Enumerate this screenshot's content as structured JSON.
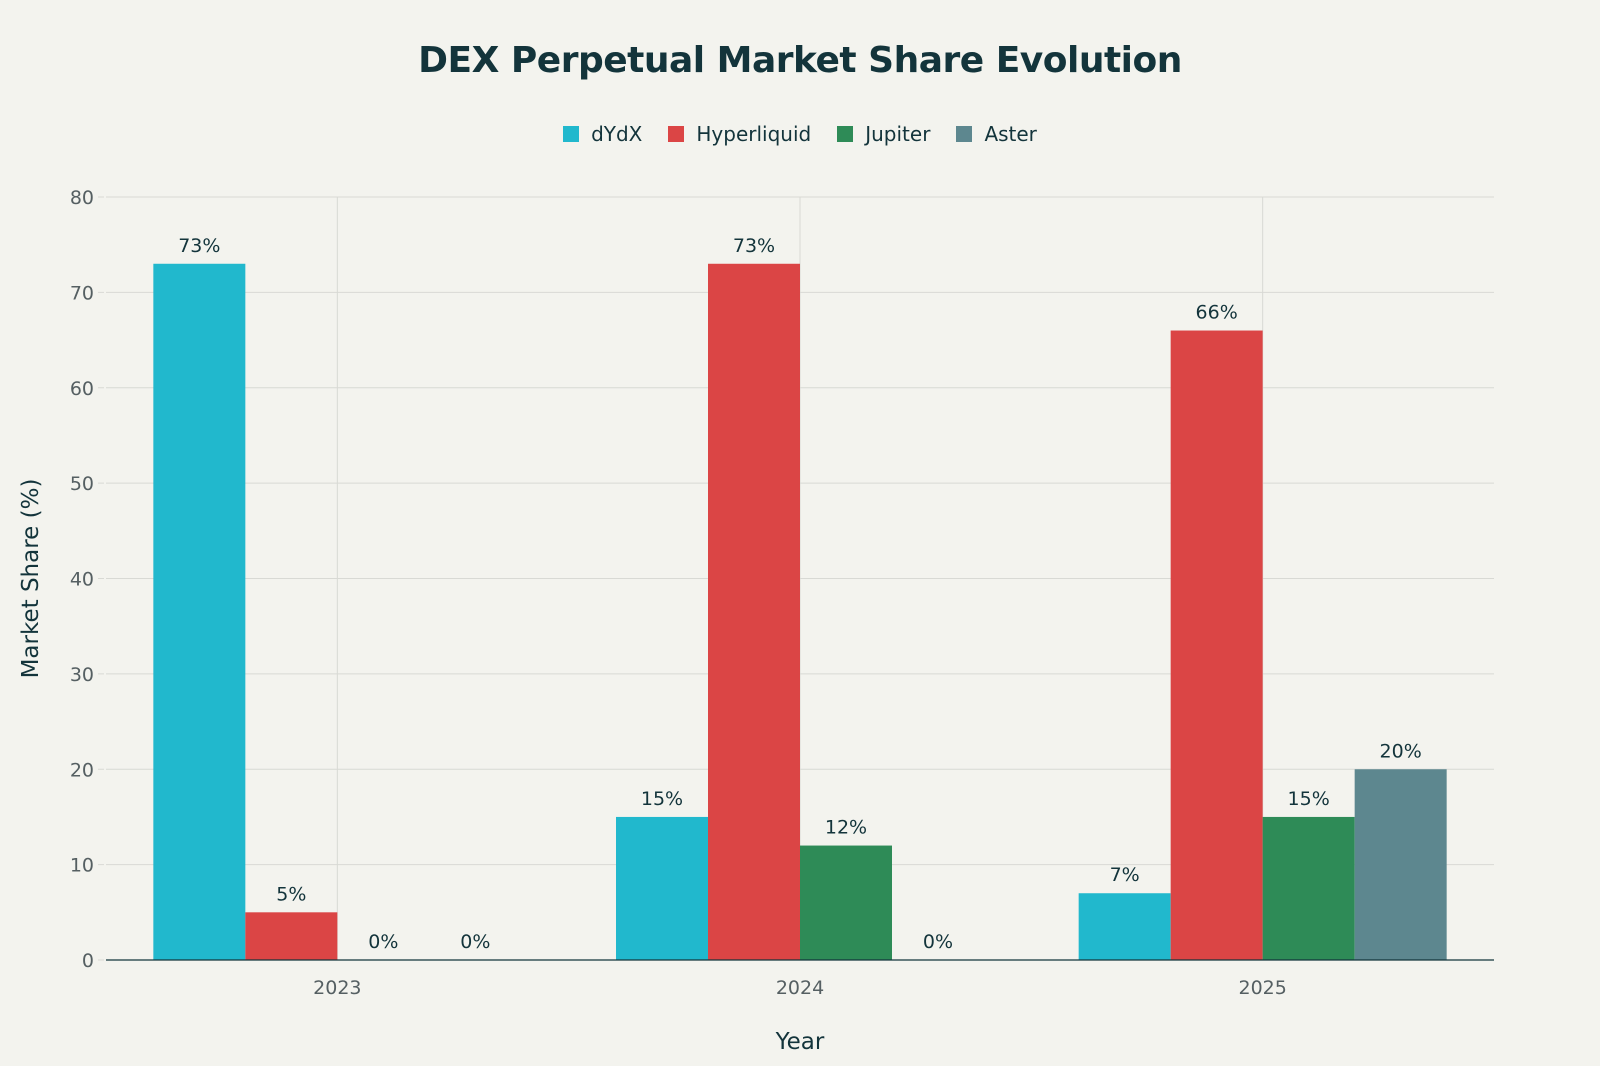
{
  "chart_data": {
    "type": "bar",
    "title": "DEX Perpetual Market Share Evolution",
    "xlabel": "Year",
    "ylabel": "Market Share (%)",
    "categories": [
      "2023",
      "2024",
      "2025"
    ],
    "ylim": [
      0,
      80
    ],
    "yticks": [
      0,
      10,
      20,
      30,
      40,
      50,
      60,
      70,
      80
    ],
    "grid": true,
    "legend_position": "top-center",
    "label_suffix": "%",
    "series": [
      {
        "name": "dYdX",
        "color": "#21b8cd",
        "values": [
          73,
          15,
          7
        ]
      },
      {
        "name": "Hyperliquid",
        "color": "#db4545",
        "values": [
          5,
          73,
          66
        ]
      },
      {
        "name": "Jupiter",
        "color": "#2e8b57",
        "values": [
          0,
          12,
          15
        ]
      },
      {
        "name": "Aster",
        "color": "#5d878f",
        "values": [
          0,
          0,
          20
        ]
      }
    ]
  }
}
